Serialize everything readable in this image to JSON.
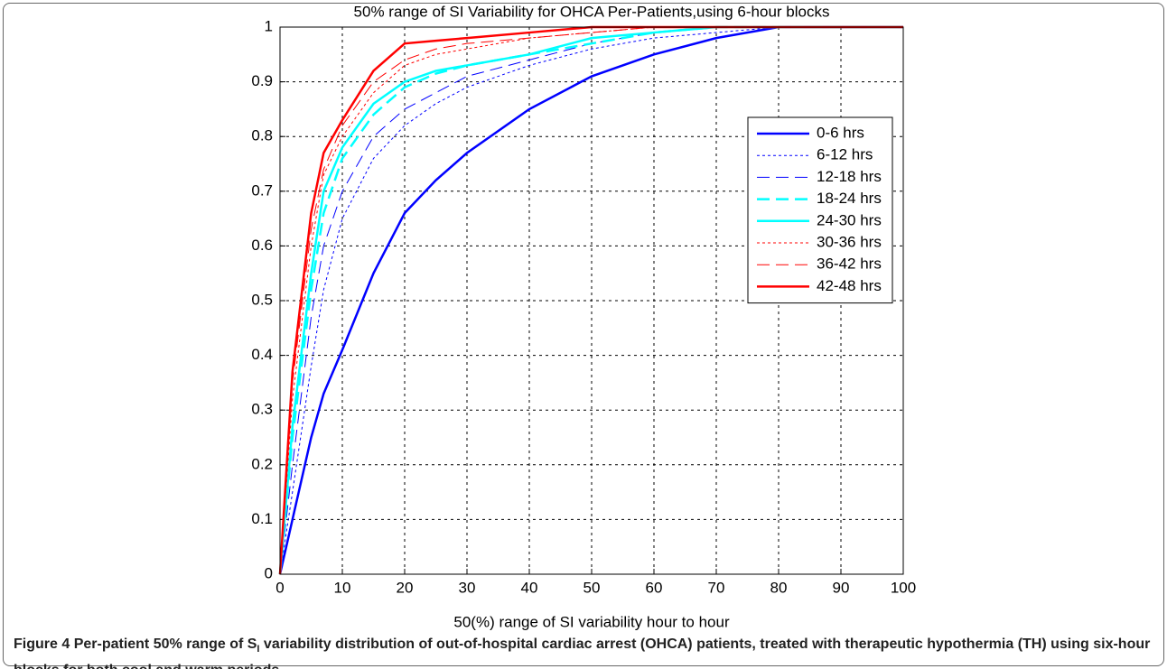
{
  "chart_data": {
    "type": "line",
    "title": "50% range of SI Variability for OHCA Per-Patients,using 6-hour blocks",
    "xlabel": "50(%) range of SI variability hour to hour",
    "x": [
      0,
      2,
      5,
      7,
      10,
      15,
      20,
      25,
      30,
      40,
      50,
      60,
      70,
      80,
      90,
      100
    ],
    "series": [
      {
        "name": "0-6 hrs",
        "color": "#0000ff",
        "linestyle": "solid",
        "linewidth": 2.5,
        "values": [
          0,
          0.1,
          0.25,
          0.33,
          0.41,
          0.55,
          0.66,
          0.72,
          0.77,
          0.85,
          0.91,
          0.95,
          0.98,
          1,
          1,
          1
        ]
      },
      {
        "name": "6-12 hrs",
        "color": "#0000ff",
        "linestyle": "dotted",
        "linewidth": 1,
        "values": [
          0,
          0.15,
          0.38,
          0.52,
          0.65,
          0.76,
          0.82,
          0.86,
          0.89,
          0.93,
          0.96,
          0.98,
          0.99,
          1,
          1,
          1
        ]
      },
      {
        "name": "12-18 hrs",
        "color": "#0000ff",
        "linestyle": "dashed",
        "linewidth": 1,
        "values": [
          0,
          0.2,
          0.47,
          0.6,
          0.7,
          0.8,
          0.85,
          0.88,
          0.91,
          0.94,
          0.97,
          0.99,
          1,
          1,
          1,
          1
        ]
      },
      {
        "name": "18-24 hrs",
        "color": "#00ffff",
        "linestyle": "dashed",
        "linewidth": 2.5,
        "values": [
          0,
          0.25,
          0.52,
          0.66,
          0.76,
          0.84,
          0.89,
          0.915,
          0.93,
          0.95,
          0.97,
          0.99,
          1,
          1,
          1,
          1
        ]
      },
      {
        "name": "24-30 hrs",
        "color": "#00ffff",
        "linestyle": "solid",
        "linewidth": 2.5,
        "values": [
          0,
          0.27,
          0.55,
          0.7,
          0.78,
          0.86,
          0.9,
          0.92,
          0.93,
          0.95,
          0.98,
          0.99,
          1,
          1,
          1,
          1
        ]
      },
      {
        "name": "30-36 hrs",
        "color": "#ff0000",
        "linestyle": "dotted",
        "linewidth": 1,
        "values": [
          0,
          0.32,
          0.6,
          0.73,
          0.8,
          0.88,
          0.93,
          0.95,
          0.96,
          0.98,
          0.99,
          1,
          1,
          1,
          1,
          1
        ]
      },
      {
        "name": "36-42 hrs",
        "color": "#ff0000",
        "linestyle": "dashed",
        "linewidth": 1,
        "values": [
          0,
          0.35,
          0.63,
          0.74,
          0.82,
          0.9,
          0.94,
          0.96,
          0.97,
          0.98,
          0.99,
          1,
          1,
          1,
          1,
          1
        ]
      },
      {
        "name": "42-48 hrs",
        "color": "#ff0000",
        "linestyle": "solid",
        "linewidth": 2.5,
        "values": [
          0,
          0.37,
          0.66,
          0.77,
          0.83,
          0.92,
          0.97,
          0.975,
          0.98,
          0.99,
          1,
          1,
          1,
          1,
          1,
          1
        ]
      }
    ],
    "xlim": [
      0,
      100
    ],
    "xticks": [
      0,
      10,
      20,
      30,
      40,
      50,
      60,
      70,
      80,
      90,
      100
    ],
    "ylim": [
      0,
      1
    ],
    "yticks": [
      0,
      0.1,
      0.2,
      0.3,
      0.4,
      0.5,
      0.6,
      0.7,
      0.8,
      0.9,
      1
    ],
    "grid": true,
    "legend_loc": "northeast"
  },
  "caption": {
    "label": "Figure 4",
    "text_before": "Per-patient 50% range of S",
    "subscript": "I",
    "text_after": " variability distribution of out-of-hospital cardiac arrest (OHCA) patients, treated with therapeutic hypothermia (TH) using six-hour blocks for both cool and warm periods."
  }
}
